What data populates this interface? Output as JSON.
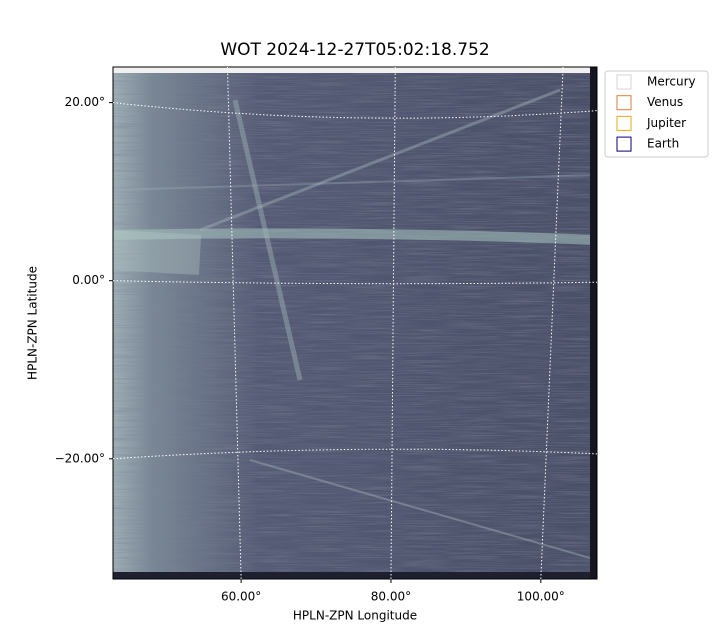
{
  "chart_data": {
    "type": "image",
    "title": "WOT 2024-12-27T05:02:18.752",
    "xlabel": "HPLN-ZPN Longitude",
    "ylabel": "HPLN-ZPN Latitude",
    "xlim": [
      42.9,
      107.5
    ],
    "ylim": [
      -33.5,
      24
    ],
    "xticks": [
      {
        "value": 60,
        "label": "60.00°"
      },
      {
        "value": 80,
        "label": "80.00°"
      },
      {
        "value": 100,
        "label": "100.00°"
      }
    ],
    "yticks": [
      {
        "value": -20,
        "label": "−20.00°"
      },
      {
        "value": 0,
        "label": "0.00°"
      },
      {
        "value": 20,
        "label": "20.00°"
      }
    ],
    "grid": true,
    "legend": "outside upper right",
    "series": [
      {
        "name": "Mercury",
        "color": "#d3d3d3"
      },
      {
        "name": "Venus",
        "color": "#e07b39"
      },
      {
        "name": "Jupiter",
        "color": "#e6a817"
      },
      {
        "name": "Earth",
        "color": "#000080"
      }
    ]
  }
}
